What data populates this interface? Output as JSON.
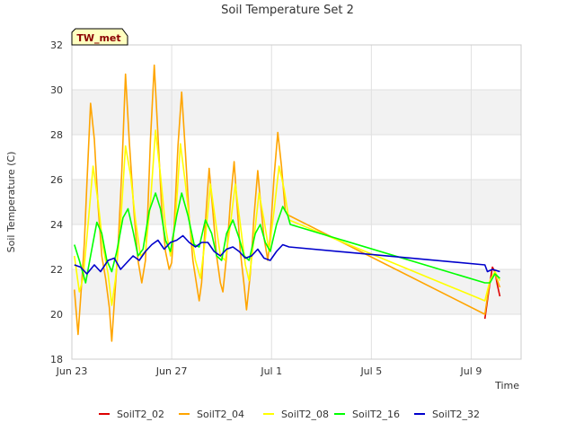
{
  "chart_data": {
    "type": "line",
    "title": "Soil Temperature Set 2",
    "xlabel": "Time",
    "ylabel": "Soil Temperature (C)",
    "station_badge": "TW_met",
    "ylim": [
      18,
      32
    ],
    "xlim": [
      0,
      18
    ],
    "x_unit": "days since Jun 23",
    "y_ticks": [
      18,
      20,
      22,
      24,
      26,
      28,
      30,
      32
    ],
    "x_ticks": [
      {
        "label": "Jun 23",
        "x": 0
      },
      {
        "label": "Jun 27",
        "x": 4
      },
      {
        "label": "Jul 1",
        "x": 8
      },
      {
        "label": "Jul 5",
        "x": 12
      },
      {
        "label": "Jul 9",
        "x": 16
      }
    ],
    "grid": true,
    "legend_position": "bottom",
    "series": [
      {
        "name": "SoilT2_02",
        "color": "#dd0000",
        "points": [
          [
            16.55,
            19.8
          ],
          [
            16.65,
            20.6
          ],
          [
            16.75,
            21.4
          ],
          [
            16.85,
            22.1
          ],
          [
            16.95,
            21.9
          ],
          [
            17.05,
            21.3
          ],
          [
            17.15,
            20.8
          ]
        ]
      },
      {
        "name": "SoilT2_04",
        "color": "#ffa500",
        "points": [
          [
            0.1,
            21.1
          ],
          [
            0.25,
            19.1
          ],
          [
            0.4,
            21.5
          ],
          [
            0.5,
            23.2
          ],
          [
            0.6,
            25.8
          ],
          [
            0.75,
            29.4
          ],
          [
            0.9,
            27.8
          ],
          [
            1.05,
            24.8
          ],
          [
            1.2,
            22.6
          ],
          [
            1.35,
            21.6
          ],
          [
            1.5,
            20.3
          ],
          [
            1.6,
            18.8
          ],
          [
            1.7,
            20.5
          ],
          [
            1.85,
            23.0
          ],
          [
            2.0,
            26.4
          ],
          [
            2.15,
            30.7
          ],
          [
            2.3,
            27.7
          ],
          [
            2.5,
            24.4
          ],
          [
            2.65,
            22.4
          ],
          [
            2.8,
            21.4
          ],
          [
            2.95,
            22.4
          ],
          [
            3.05,
            24.8
          ],
          [
            3.15,
            27.8
          ],
          [
            3.3,
            31.1
          ],
          [
            3.45,
            28.0
          ],
          [
            3.6,
            24.7
          ],
          [
            3.75,
            22.8
          ],
          [
            3.9,
            22.0
          ],
          [
            4.0,
            22.3
          ],
          [
            4.1,
            24.0
          ],
          [
            4.25,
            27.5
          ],
          [
            4.4,
            29.9
          ],
          [
            4.55,
            27.2
          ],
          [
            4.7,
            24.3
          ],
          [
            4.85,
            22.4
          ],
          [
            5.0,
            21.3
          ],
          [
            5.1,
            20.6
          ],
          [
            5.2,
            21.4
          ],
          [
            5.35,
            24.1
          ],
          [
            5.5,
            26.5
          ],
          [
            5.65,
            24.6
          ],
          [
            5.8,
            22.6
          ],
          [
            5.95,
            21.4
          ],
          [
            6.05,
            21.0
          ],
          [
            6.2,
            22.6
          ],
          [
            6.35,
            25.0
          ],
          [
            6.5,
            26.8
          ],
          [
            6.6,
            25.2
          ],
          [
            6.75,
            22.8
          ],
          [
            6.9,
            21.3
          ],
          [
            7.0,
            20.2
          ],
          [
            7.15,
            21.8
          ],
          [
            7.3,
            24.4
          ],
          [
            7.45,
            26.4
          ],
          [
            7.55,
            25.1
          ],
          [
            7.7,
            23.4
          ],
          [
            7.85,
            22.4
          ],
          [
            7.95,
            23.5
          ],
          [
            8.1,
            26.1
          ],
          [
            8.25,
            28.1
          ],
          [
            8.4,
            26.6
          ],
          [
            8.55,
            24.6
          ],
          [
            8.7,
            24.4
          ],
          [
            16.55,
            20.0
          ],
          [
            16.75,
            21.5
          ],
          [
            16.95,
            21.8
          ],
          [
            17.15,
            21.2
          ]
        ]
      },
      {
        "name": "SoilT2_08",
        "color": "#ffff00",
        "points": [
          [
            0.1,
            22.6
          ],
          [
            0.3,
            21.0
          ],
          [
            0.45,
            21.6
          ],
          [
            0.6,
            23.4
          ],
          [
            0.85,
            26.6
          ],
          [
            1.05,
            25.0
          ],
          [
            1.25,
            23.0
          ],
          [
            1.45,
            21.8
          ],
          [
            1.6,
            20.4
          ],
          [
            1.75,
            21.6
          ],
          [
            1.95,
            24.0
          ],
          [
            2.15,
            27.5
          ],
          [
            2.35,
            26.2
          ],
          [
            2.55,
            24.2
          ],
          [
            2.75,
            22.6
          ],
          [
            2.95,
            22.8
          ],
          [
            3.15,
            25.0
          ],
          [
            3.35,
            28.2
          ],
          [
            3.55,
            26.2
          ],
          [
            3.75,
            23.9
          ],
          [
            3.95,
            22.6
          ],
          [
            4.15,
            24.2
          ],
          [
            4.35,
            27.6
          ],
          [
            4.55,
            25.8
          ],
          [
            4.75,
            23.8
          ],
          [
            4.95,
            22.4
          ],
          [
            5.15,
            21.6
          ],
          [
            5.35,
            23.4
          ],
          [
            5.55,
            25.8
          ],
          [
            5.75,
            24.2
          ],
          [
            5.95,
            22.6
          ],
          [
            6.15,
            22.4
          ],
          [
            6.35,
            24.0
          ],
          [
            6.55,
            25.8
          ],
          [
            6.75,
            24.0
          ],
          [
            6.95,
            22.2
          ],
          [
            7.1,
            21.5
          ],
          [
            7.3,
            23.4
          ],
          [
            7.5,
            25.4
          ],
          [
            7.7,
            24.2
          ],
          [
            7.9,
            22.8
          ],
          [
            8.1,
            24.6
          ],
          [
            8.3,
            26.6
          ],
          [
            8.5,
            25.6
          ],
          [
            8.7,
            24.2
          ],
          [
            16.55,
            20.6
          ],
          [
            16.75,
            21.5
          ],
          [
            16.95,
            21.9
          ],
          [
            17.15,
            21.5
          ]
        ]
      },
      {
        "name": "SoilT2_16",
        "color": "#00ff00",
        "points": [
          [
            0.1,
            23.1
          ],
          [
            0.3,
            22.4
          ],
          [
            0.55,
            21.4
          ],
          [
            0.75,
            22.6
          ],
          [
            1.0,
            24.1
          ],
          [
            1.2,
            23.6
          ],
          [
            1.4,
            22.4
          ],
          [
            1.6,
            21.9
          ],
          [
            1.8,
            22.8
          ],
          [
            2.05,
            24.3
          ],
          [
            2.25,
            24.7
          ],
          [
            2.45,
            23.7
          ],
          [
            2.65,
            22.6
          ],
          [
            2.85,
            22.9
          ],
          [
            3.1,
            24.6
          ],
          [
            3.35,
            25.4
          ],
          [
            3.55,
            24.7
          ],
          [
            3.75,
            23.3
          ],
          [
            3.95,
            22.8
          ],
          [
            4.2,
            24.4
          ],
          [
            4.4,
            25.4
          ],
          [
            4.65,
            24.4
          ],
          [
            4.9,
            23.1
          ],
          [
            5.1,
            23.0
          ],
          [
            5.35,
            24.2
          ],
          [
            5.6,
            23.6
          ],
          [
            5.8,
            22.6
          ],
          [
            6.0,
            22.4
          ],
          [
            6.2,
            23.6
          ],
          [
            6.45,
            24.2
          ],
          [
            6.7,
            23.4
          ],
          [
            6.9,
            22.6
          ],
          [
            7.1,
            22.4
          ],
          [
            7.35,
            23.6
          ],
          [
            7.55,
            24.0
          ],
          [
            7.75,
            23.2
          ],
          [
            7.95,
            22.8
          ],
          [
            8.2,
            24.0
          ],
          [
            8.45,
            24.8
          ],
          [
            8.65,
            24.4
          ],
          [
            8.75,
            24.0
          ],
          [
            16.55,
            21.4
          ],
          [
            16.75,
            21.4
          ],
          [
            16.95,
            21.8
          ],
          [
            17.15,
            21.6
          ]
        ]
      },
      {
        "name": "SoilT2_32",
        "color": "#0000cc",
        "points": [
          [
            0.1,
            22.2
          ],
          [
            0.35,
            22.1
          ],
          [
            0.6,
            21.8
          ],
          [
            0.9,
            22.2
          ],
          [
            1.15,
            21.9
          ],
          [
            1.45,
            22.4
          ],
          [
            1.7,
            22.5
          ],
          [
            1.95,
            22.0
          ],
          [
            2.2,
            22.3
          ],
          [
            2.45,
            22.6
          ],
          [
            2.7,
            22.4
          ],
          [
            2.95,
            22.8
          ],
          [
            3.2,
            23.1
          ],
          [
            3.45,
            23.3
          ],
          [
            3.7,
            22.9
          ],
          [
            3.95,
            23.2
          ],
          [
            4.2,
            23.3
          ],
          [
            4.45,
            23.5
          ],
          [
            4.7,
            23.2
          ],
          [
            4.95,
            23.0
          ],
          [
            5.2,
            23.2
          ],
          [
            5.45,
            23.2
          ],
          [
            5.7,
            22.8
          ],
          [
            5.95,
            22.6
          ],
          [
            6.2,
            22.9
          ],
          [
            6.45,
            23.0
          ],
          [
            6.7,
            22.8
          ],
          [
            6.95,
            22.5
          ],
          [
            7.2,
            22.6
          ],
          [
            7.45,
            22.9
          ],
          [
            7.7,
            22.5
          ],
          [
            7.95,
            22.4
          ],
          [
            8.2,
            22.8
          ],
          [
            8.45,
            23.1
          ],
          [
            8.7,
            23.0
          ],
          [
            16.55,
            22.2
          ],
          [
            16.65,
            21.9
          ],
          [
            16.85,
            22.0
          ],
          [
            17.15,
            21.9
          ]
        ]
      }
    ]
  }
}
